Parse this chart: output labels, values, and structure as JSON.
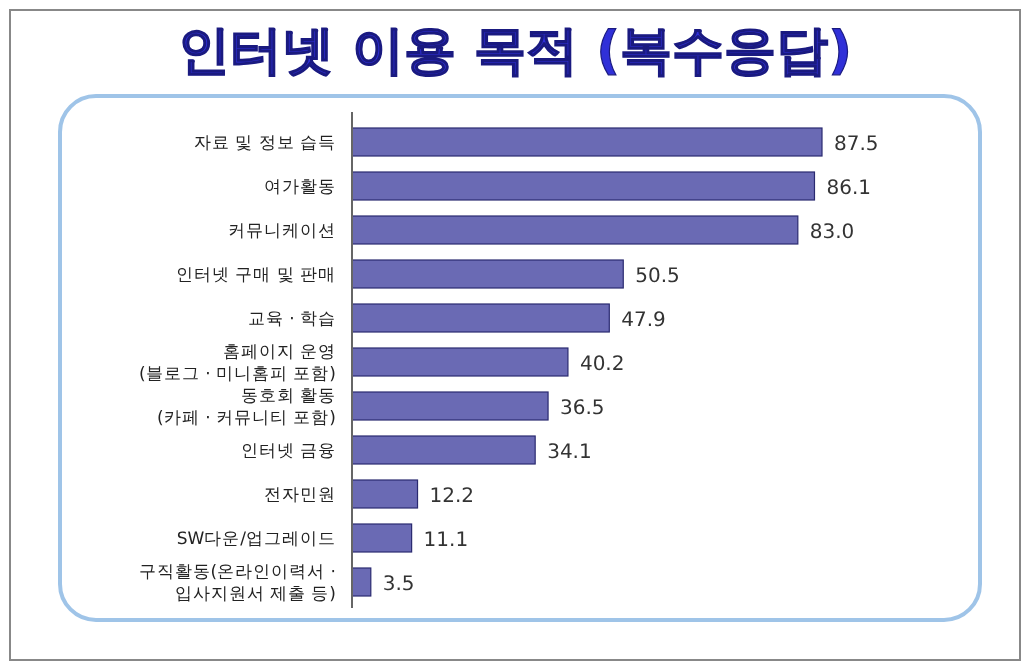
{
  "chart_data": {
    "type": "bar",
    "orientation": "horizontal",
    "title": "인터넷 이용 목적 (복수응답)",
    "categories": [
      "자료 및 정보 습득",
      "여가활동",
      "커뮤니케이션",
      "인터넷 구매 및 판매",
      "교육 · 학습",
      "홈페이지 운영\n(블로그 · 미니홈피 포함)",
      "동호회 활동\n(카페 · 커뮤니티 포함)",
      "인터넷 금융",
      "전자민원",
      "SW다운/업그레이드",
      "구직활동(온라인이력서 ·\n입사지원서 제출 등)"
    ],
    "values": [
      87.5,
      86.1,
      83.0,
      50.5,
      47.9,
      40.2,
      36.5,
      34.1,
      12.2,
      11.1,
      3.5
    ],
    "color": "#6a6ab4",
    "data_labels": true,
    "value_labels": [
      "87.5",
      "86.1",
      "83.0",
      "50.5",
      "47.9",
      "40.2",
      "36.5",
      "34.1",
      "12.2",
      "11.1",
      "3.5"
    ]
  }
}
